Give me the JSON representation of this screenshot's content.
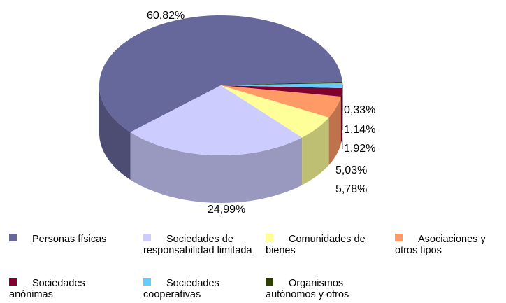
{
  "chart_data": {
    "type": "pie3d",
    "categories": [
      "Personas físicas",
      "Sociedades de responsabilidad limitada",
      "Comunidades de bienes",
      "Asociaciones y otros tipos",
      "Sociedades anónimas",
      "Sociedades cooperativas",
      "Organismos autónomos y otros"
    ],
    "values": [
      60.82,
      24.99,
      5.78,
      5.03,
      1.92,
      1.14,
      0.33
    ],
    "value_labels": [
      "60,82%",
      "24,99%",
      "5,78%",
      "5,03%",
      "1,92%",
      "1,14%",
      "0,33%"
    ],
    "colors": [
      "#66679a",
      "#ccccff",
      "#ffff99",
      "#ff9966",
      "#800030",
      "#66ccff",
      "#2e3f00"
    ]
  }
}
